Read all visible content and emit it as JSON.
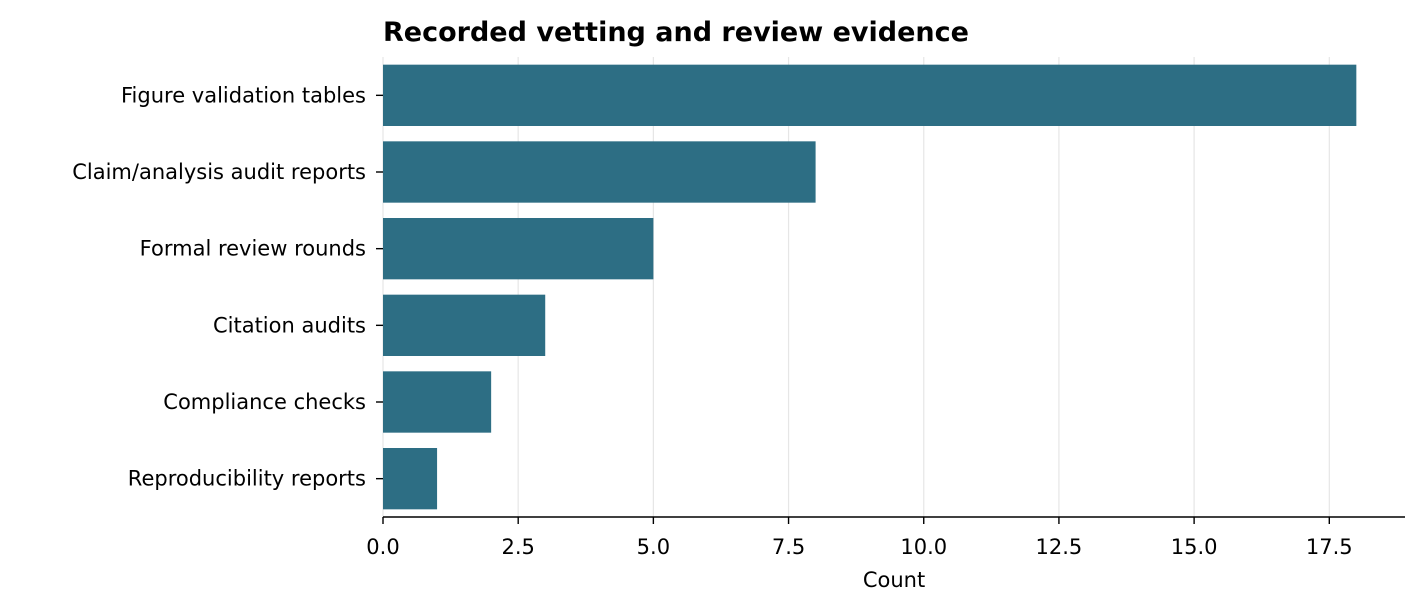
{
  "chart_data": {
    "type": "bar",
    "orientation": "horizontal",
    "title": "Recorded vetting and review evidence",
    "xlabel": "Count",
    "ylabel": "",
    "categories": [
      "Figure validation tables",
      "Claim/analysis audit reports",
      "Formal review rounds",
      "Citation audits",
      "Compliance checks",
      "Reproducibility reports"
    ],
    "values": [
      18,
      8,
      5,
      3,
      2,
      1
    ],
    "xlim": [
      0,
      18.9
    ],
    "xticks": [
      0,
      2.5,
      5,
      7.5,
      10,
      12.5,
      15,
      17.5
    ],
    "xtick_labels": [
      "0.0",
      "2.5",
      "5.0",
      "7.5",
      "10.0",
      "12.5",
      "15.0",
      "17.5"
    ],
    "grid": "vertical",
    "bar_color": "#2d6e84",
    "grid_color": "#e6e6e6"
  }
}
